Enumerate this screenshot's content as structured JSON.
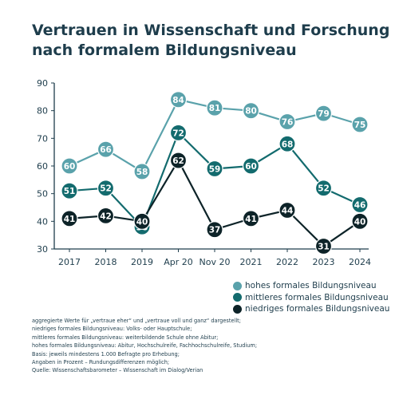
{
  "title_line1": "Vertrauen in Wissenschaft und Forschung",
  "title_line2": "nach formalem Bildungsniveau",
  "colors": {
    "text": "#1e3d4c",
    "axis": "#1e3d4c",
    "high": "#5aa2ab",
    "medium": "#136b6e",
    "low": "#0d2328"
  },
  "chart_data": {
    "type": "line",
    "title": "Vertrauen in Wissenschaft und Forschung nach formalem Bildungsniveau",
    "categories": [
      "2017",
      "2018",
      "2019",
      "Apr 20",
      "Nov 20",
      "2021",
      "2022",
      "2023",
      "2024"
    ],
    "ylim": [
      30,
      90
    ],
    "yticks": [
      30,
      40,
      50,
      60,
      70,
      80,
      90
    ],
    "grid": false,
    "legend": "bottom-right",
    "series": [
      {
        "name": "hohes formales Bildungsniveau",
        "color": "#5aa2ab",
        "values": [
          60,
          66,
          58,
          84,
          81,
          80,
          76,
          79,
          75
        ]
      },
      {
        "name": "mittleres formales Bildungsniveau",
        "color": "#136b6e",
        "values": [
          51,
          52,
          38,
          72,
          59,
          60,
          68,
          52,
          46
        ]
      },
      {
        "name": "niedriges formales Bildungsniveau",
        "color": "#0d2328",
        "values": [
          41,
          42,
          40,
          62,
          37,
          41,
          44,
          31,
          40
        ]
      }
    ]
  },
  "notes": [
    "aggregierte Werte für „vertraue eher“ und „vertraue voll und ganz“ dargestellt;",
    "niedriges formales Bildungsniveau: Volks- oder Hauptschule;",
    "mittleres formales Bildungsniveau: weiterbildende Schule ohne Abitur;",
    "hohes formales Bildungsniveau: Abitur, Hochschulreife, Fachhochschulreife, Studium;",
    "Basis: jeweils mindestens 1.000 Befragte pro Erhebung;",
    "Angaben in Prozent – Rundungsdifferenzen möglich;",
    "Quelle: Wissenschaftsbarometer – Wissenschaft im Dialog/Verian"
  ]
}
